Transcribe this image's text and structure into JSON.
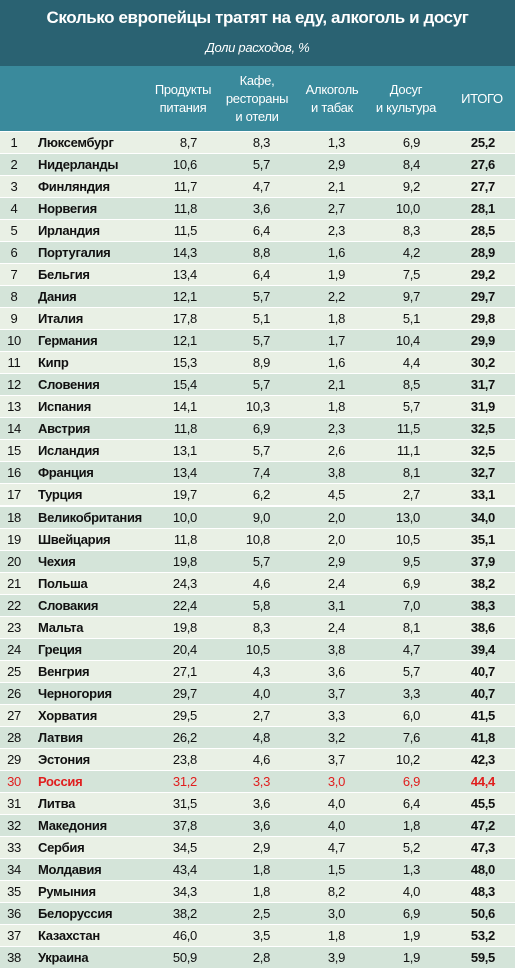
{
  "header": {
    "title": "Сколько европейцы тратят на еду, алкоголь и досуг",
    "subtitle": "Доли расходов, %"
  },
  "table": {
    "columns": [
      [
        "Продукты",
        "питания"
      ],
      [
        "Кафе,",
        "рестораны",
        "и отели"
      ],
      [
        "Алкоголь",
        "и табак"
      ],
      [
        "Досуг",
        "и культура"
      ],
      [
        "ИТОГО"
      ]
    ],
    "rows": [
      [
        "1",
        "Люксембург",
        "8,7",
        "8,3",
        "1,3",
        "6,9",
        "25,2"
      ],
      [
        "2",
        "Нидерланды",
        "10,6",
        "5,7",
        "2,9",
        "8,4",
        "27,6"
      ],
      [
        "3",
        "Финляндия",
        "11,7",
        "4,7",
        "2,1",
        "9,2",
        "27,7"
      ],
      [
        "4",
        "Норвегия",
        "11,8",
        "3,6",
        "2,7",
        "10,0",
        "28,1"
      ],
      [
        "5",
        "Ирландия",
        "11,5",
        "6,4",
        "2,3",
        "8,3",
        "28,5"
      ],
      [
        "6",
        "Португалия",
        "14,3",
        "8,8",
        "1,6",
        "4,2",
        "28,9"
      ],
      [
        "7",
        "Бельгия",
        "13,4",
        "6,4",
        "1,9",
        "7,5",
        "29,2"
      ],
      [
        "8",
        "Дания",
        "12,1",
        "5,7",
        "2,2",
        "9,7",
        "29,7"
      ],
      [
        "9",
        "Италия",
        "17,8",
        "5,1",
        "1,8",
        "5,1",
        "29,8"
      ],
      [
        "10",
        "Германия",
        "12,1",
        "5,7",
        "1,7",
        "10,4",
        "29,9"
      ],
      [
        "11",
        "Кипр",
        "15,3",
        "8,9",
        "1,6",
        "4,4",
        "30,2"
      ],
      [
        "12",
        "Словения",
        "15,4",
        "5,7",
        "2,1",
        "8,5",
        "31,7"
      ],
      [
        "13",
        "Испания",
        "14,1",
        "10,3",
        "1,8",
        "5,7",
        "31,9"
      ],
      [
        "14",
        "Австрия",
        "11,8",
        "6,9",
        "2,3",
        "11,5",
        "32,5"
      ],
      [
        "15",
        "Исландия",
        "13,1",
        "5,7",
        "2,6",
        "11,1",
        "32,5"
      ],
      [
        "16",
        "Франция",
        "13,4",
        "7,4",
        "3,8",
        "8,1",
        "32,7"
      ],
      [
        "17",
        "Турция",
        "19,7",
        "6,2",
        "4,5",
        "2,7",
        "33,1"
      ],
      [
        "18",
        "Великобритания",
        "10,0",
        "9,0",
        "2,0",
        "13,0",
        "34,0"
      ],
      [
        "19",
        "Швейцария",
        "11,8",
        "10,8",
        "2,0",
        "10,5",
        "35,1"
      ],
      [
        "20",
        "Чехия",
        "19,8",
        "5,7",
        "2,9",
        "9,5",
        "37,9"
      ],
      [
        "21",
        "Польша",
        "24,3",
        "4,6",
        "2,4",
        "6,9",
        "38,2"
      ],
      [
        "22",
        "Словакия",
        "22,4",
        "5,8",
        "3,1",
        "7,0",
        "38,3"
      ],
      [
        "23",
        "Мальта",
        "19,8",
        "8,3",
        "2,4",
        "8,1",
        "38,6"
      ],
      [
        "24",
        "Греция",
        "20,4",
        "10,5",
        "3,8",
        "4,7",
        "39,4"
      ],
      [
        "25",
        "Венгрия",
        "27,1",
        "4,3",
        "3,6",
        "5,7",
        "40,7"
      ],
      [
        "26",
        "Черногория",
        "29,7",
        "4,0",
        "3,7",
        "3,3",
        "40,7"
      ],
      [
        "27",
        "Хорватия",
        "29,5",
        "2,7",
        "3,3",
        "6,0",
        "41,5"
      ],
      [
        "28",
        "Латвия",
        "26,2",
        "4,8",
        "3,2",
        "7,6",
        "41,8"
      ],
      [
        "29",
        "Эстония",
        "23,8",
        "4,6",
        "3,7",
        "10,2",
        "42,3"
      ],
      [
        "30",
        "Россия",
        "31,2",
        "3,3",
        "3,0",
        "6,9",
        "44,4"
      ],
      [
        "31",
        "Литва",
        "31,5",
        "3,6",
        "4,0",
        "6,4",
        "45,5"
      ],
      [
        "32",
        "Македония",
        "37,8",
        "3,6",
        "4,0",
        "1,8",
        "47,2"
      ],
      [
        "33",
        "Сербия",
        "34,5",
        "2,9",
        "4,7",
        "5,2",
        "47,3"
      ],
      [
        "34",
        "Молдавия",
        "43,4",
        "1,8",
        "1,5",
        "1,3",
        "48,0"
      ],
      [
        "35",
        "Румыния",
        "34,3",
        "1,8",
        "8,2",
        "4,0",
        "48,3"
      ],
      [
        "36",
        "Белоруссия",
        "38,2",
        "2,5",
        "3,0",
        "6,9",
        "50,6"
      ],
      [
        "37",
        "Казахстан",
        "46,0",
        "3,5",
        "1,8",
        "1,9",
        "53,2"
      ],
      [
        "38",
        "Украина",
        "50,9",
        "2,8",
        "3,9",
        "1,9",
        "59,5"
      ]
    ]
  }
}
